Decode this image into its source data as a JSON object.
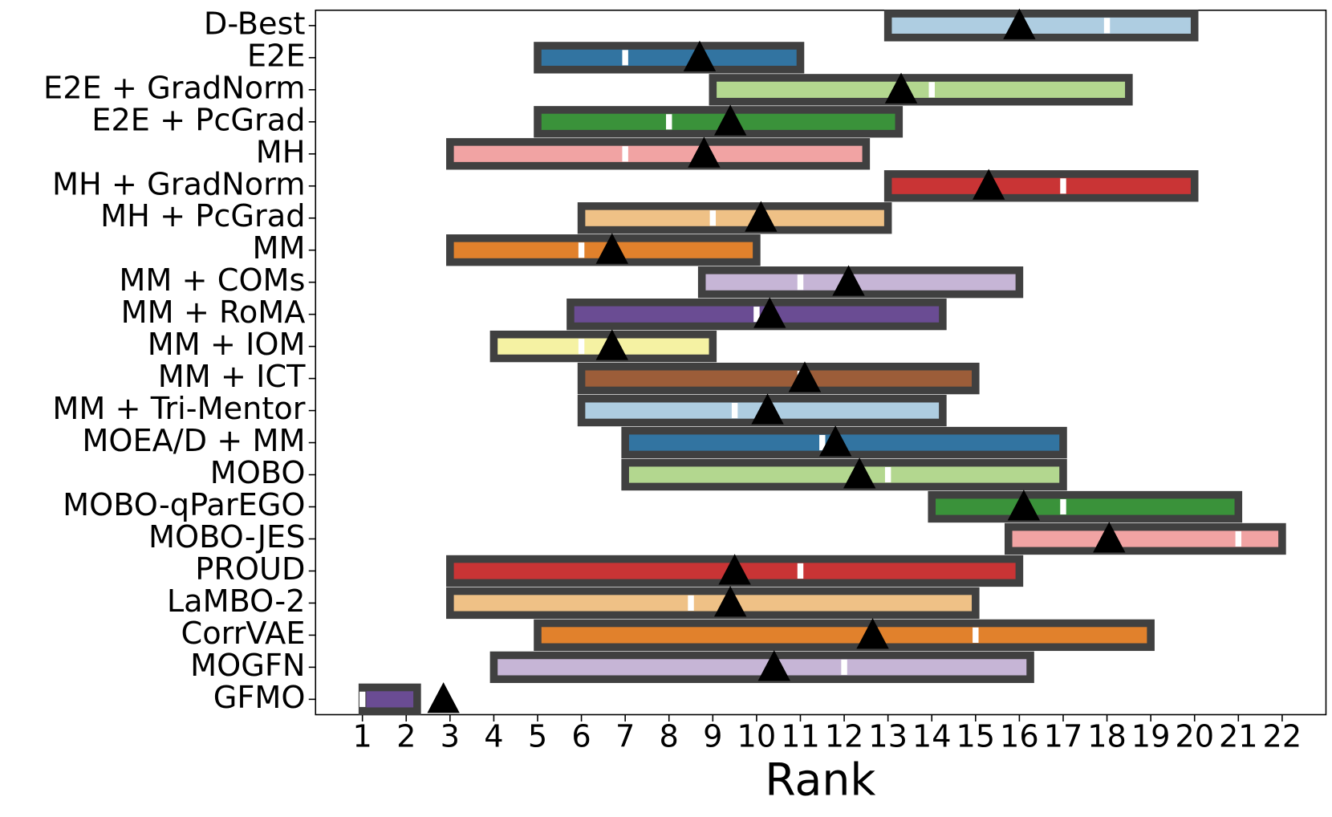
{
  "chart_data": {
    "type": "rank-box",
    "xlabel": "Rank",
    "categories": [
      "D-Best",
      "E2E",
      "E2E + GradNorm",
      "E2E + PcGrad",
      "MH",
      "MH + GradNorm",
      "MH + PcGrad",
      "MM",
      "MM + COMs",
      "MM + RoMA",
      "MM + IOM",
      "MM + ICT",
      "MM + Tri-Mentor",
      "MOEA/D + MM",
      "MOBO",
      "MOBO-qParEGO",
      "MOBO-JES",
      "PROUD",
      "LaMBO-2",
      "CorrVAE",
      "MOGFN",
      "GFMO"
    ],
    "low": [
      13,
      5,
      9,
      5,
      3,
      13,
      6,
      3,
      8.75,
      5.75,
      4,
      6,
      6,
      7,
      7,
      14,
      15.75,
      3,
      3,
      5,
      4,
      1
    ],
    "median": [
      18,
      7,
      14,
      8,
      7,
      17,
      9,
      6,
      11,
      10,
      6,
      11,
      9.5,
      11.5,
      13,
      17,
      21,
      11,
      8.5,
      15,
      12,
      1
    ],
    "high": [
      20,
      11,
      18.5,
      13.25,
      12.5,
      20,
      13,
      10,
      16,
      14.25,
      9,
      15,
      14.25,
      17,
      17,
      21,
      22,
      16,
      15,
      19,
      16.25,
      2.25
    ],
    "mean": [
      16,
      8.7,
      13.3,
      9.4,
      8.8,
      15.3,
      10.1,
      6.7,
      12.1,
      10.3,
      6.7,
      11.1,
      10.25,
      11.8,
      12.35,
      16.1,
      18.05,
      9.5,
      9.4,
      12.65,
      10.4,
      2.85
    ],
    "colors": [
      "#aecde1",
      "#3274a1",
      "#b3d78f",
      "#3a923a",
      "#f1a3a3",
      "#c93435",
      "#efc186",
      "#e1812c",
      "#c6b5d6",
      "#6a4c93",
      "#f5f2a3",
      "#9c5d39",
      "#aecde1",
      "#3274a1",
      "#b3d78f",
      "#3a923a",
      "#f1a3a3",
      "#c93435",
      "#efc186",
      "#e1812c",
      "#c6b5d6",
      "#6a4c93"
    ],
    "xlim": [
      -0.07,
      23.0
    ],
    "xticks": [
      1,
      2,
      3,
      4,
      5,
      6,
      7,
      8,
      9,
      10,
      11,
      12,
      13,
      14,
      15,
      16,
      17,
      18,
      19,
      20,
      21,
      22
    ]
  }
}
